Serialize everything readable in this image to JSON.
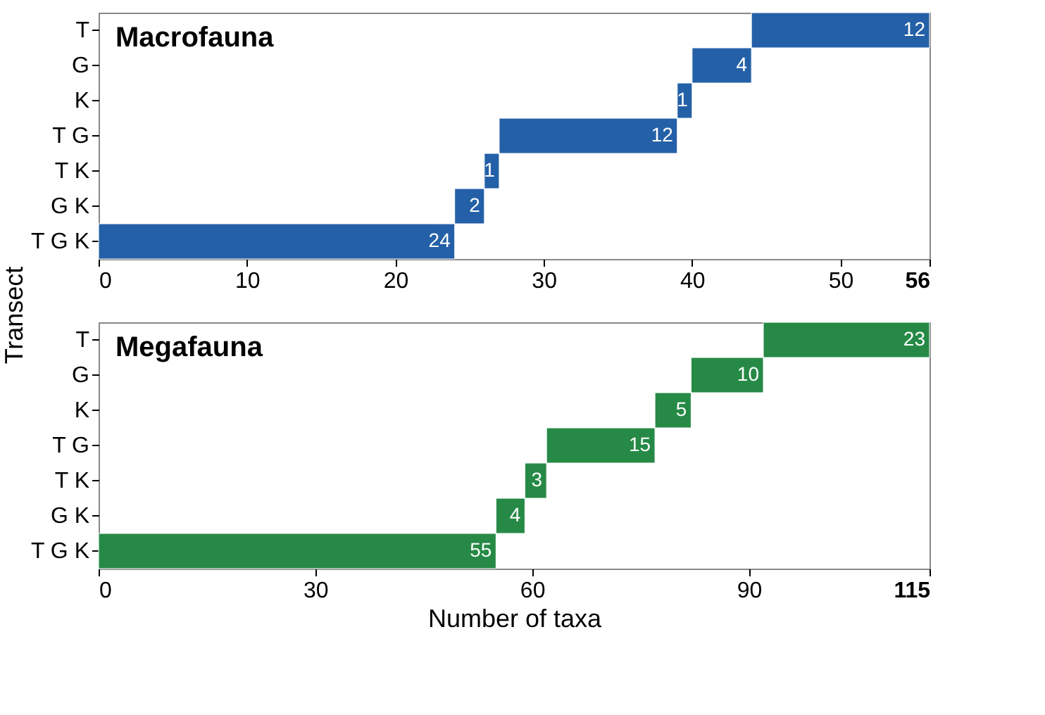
{
  "chart_data": [
    {
      "type": "bar",
      "orientation": "horizontal",
      "title": "Macrofauna",
      "ylabel": "Transect",
      "categories": [
        "T",
        "G",
        "K",
        "T G",
        "T K",
        "G K",
        "T G K"
      ],
      "values": [
        12,
        4,
        1,
        12,
        1,
        2,
        24
      ],
      "base": [
        44,
        40,
        39,
        27,
        26,
        24,
        0
      ],
      "color": "#2460a7",
      "data_labels": true,
      "xlim": [
        0,
        56
      ],
      "xticks": [
        0,
        10,
        20,
        30,
        40,
        50,
        56
      ],
      "grid": false
    },
    {
      "type": "bar",
      "orientation": "horizontal",
      "title": "Megafauna",
      "xlabel": "Number of taxa",
      "categories": [
        "T",
        "G",
        "K",
        "T G",
        "T K",
        "G K",
        "T G K"
      ],
      "values": [
        23,
        10,
        5,
        15,
        3,
        4,
        55
      ],
      "base": [
        92,
        82,
        77,
        62,
        59,
        55,
        0
      ],
      "color": "#268a46",
      "data_labels": true,
      "xlim": [
        0,
        115
      ],
      "xticks": [
        0,
        30,
        60,
        90,
        115
      ],
      "grid": false
    }
  ]
}
